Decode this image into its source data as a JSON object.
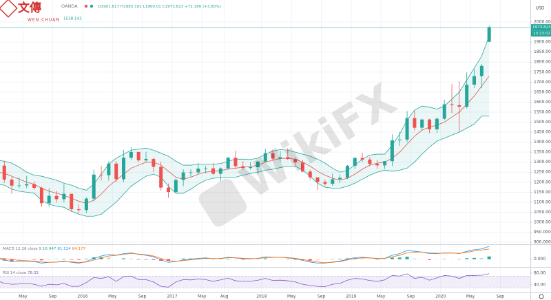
{
  "chart_data": {
    "type": "candlestick",
    "logo": {
      "text": "文傳",
      "sub": "WEN CHUAN"
    },
    "symbol": "OANDA",
    "ohlc_labels": [
      "O",
      "H",
      "L",
      "C"
    ],
    "change": "+72.186 (+3.80%)",
    "bb_text": "1538.143",
    "watermark": "WikiFX",
    "currency": "USD",
    "countdown": "13:23:02",
    "colors": {
      "up": "#26a69a",
      "down": "#ef5350"
    },
    "grid": true,
    "x": [
      "2015-01",
      "2015-02",
      "2015-03",
      "2015-04",
      "2015-05",
      "2015-06",
      "2015-07",
      "2015-08",
      "2015-09",
      "2015-10",
      "2015-11",
      "2015-12",
      "2016-01",
      "2016-02",
      "2016-03",
      "2016-04",
      "2016-05",
      "2016-06",
      "2016-07",
      "2016-08",
      "2016-09",
      "2016-10",
      "2016-11",
      "2016-12",
      "2017-01",
      "2017-02",
      "2017-03",
      "2017-04",
      "2017-05",
      "2017-06",
      "2017-07",
      "2017-08",
      "2017-09",
      "2017-10",
      "2017-11",
      "2017-12",
      "2018-01",
      "2018-02",
      "2018-03",
      "2018-04",
      "2018-05",
      "2018-06",
      "2018-07",
      "2018-08",
      "2018-09",
      "2018-10",
      "2018-11",
      "2018-12",
      "2019-01",
      "2019-02",
      "2019-03",
      "2019-04",
      "2019-05",
      "2019-06",
      "2019-07",
      "2019-08",
      "2019-09",
      "2019-10",
      "2019-11",
      "2019-12",
      "2020-01",
      "2020-02",
      "2020-03",
      "2020-04",
      "2020-05",
      "2020-06",
      "2020-07"
    ],
    "open": [
      1184,
      1283,
      1213,
      1183,
      1184,
      1190,
      1172,
      1095,
      1132,
      1115,
      1142,
      1065,
      1061,
      1118,
      1238,
      1235,
      1293,
      1215,
      1322,
      1351,
      1309,
      1316,
      1277,
      1173,
      1151,
      1211,
      1249,
      1249,
      1268,
      1269,
      1242,
      1269,
      1322,
      1280,
      1271,
      1275,
      1303,
      1345,
      1318,
      1325,
      1316,
      1299,
      1253,
      1224,
      1201,
      1192,
      1215,
      1222,
      1282,
      1321,
      1313,
      1292,
      1284,
      1305,
      1409,
      1413,
      1520,
      1472,
      1513,
      1464,
      1517,
      1589,
      1585,
      1577,
      1687,
      1730,
      1901.617
    ],
    "high": [
      1307,
      1307,
      1225,
      1224,
      1232,
      1205,
      1178,
      1170,
      1157,
      1192,
      1142,
      1088,
      1125,
      1262,
      1282,
      1304,
      1306,
      1362,
      1375,
      1352,
      1352,
      1322,
      1303,
      1193,
      1220,
      1264,
      1264,
      1296,
      1282,
      1296,
      1274,
      1326,
      1357,
      1306,
      1300,
      1307,
      1366,
      1362,
      1356,
      1370,
      1326,
      1310,
      1262,
      1216,
      1214,
      1243,
      1238,
      1286,
      1326,
      1347,
      1325,
      1311,
      1306,
      1439,
      1452,
      1555,
      1557,
      1517,
      1517,
      1524,
      1612,
      1690,
      1703,
      1748,
      1765,
      1790,
      1983.102
    ],
    "low": [
      1167,
      1197,
      1142,
      1170,
      1170,
      1162,
      1077,
      1077,
      1097,
      1098,
      1052,
      1046,
      1046,
      1105,
      1208,
      1208,
      1200,
      1200,
      1310,
      1300,
      1302,
      1251,
      1157,
      1122,
      1146,
      1180,
      1227,
      1240,
      1245,
      1236,
      1205,
      1266,
      1270,
      1260,
      1263,
      1237,
      1300,
      1307,
      1304,
      1310,
      1282,
      1250,
      1210,
      1160,
      1181,
      1182,
      1196,
      1215,
      1266,
      1302,
      1280,
      1266,
      1266,
      1280,
      1382,
      1400,
      1459,
      1458,
      1445,
      1446,
      1510,
      1546,
      1451,
      1568,
      1670,
      1670,
      1900.01
    ],
    "close": [
      1283,
      1213,
      1183,
      1184,
      1190,
      1172,
      1095,
      1132,
      1115,
      1142,
      1065,
      1061,
      1118,
      1238,
      1235,
      1293,
      1215,
      1322,
      1351,
      1309,
      1316,
      1277,
      1173,
      1151,
      1211,
      1249,
      1249,
      1268,
      1269,
      1242,
      1269,
      1322,
      1280,
      1271,
      1275,
      1303,
      1345,
      1318,
      1325,
      1316,
      1299,
      1253,
      1224,
      1201,
      1192,
      1215,
      1222,
      1282,
      1321,
      1313,
      1292,
      1284,
      1305,
      1409,
      1413,
      1520,
      1472,
      1513,
      1464,
      1517,
      1589,
      1585,
      1577,
      1687,
      1730,
      1781,
      1973.823
    ],
    "bollinger": {
      "band_color": "#26a69a",
      "basis_color": "#e0534f",
      "fill": "rgba(38,166,154,0.09)",
      "upper": [
        1310,
        1305,
        1295,
        1275,
        1250,
        1235,
        1230,
        1220,
        1210,
        1195,
        1185,
        1170,
        1160,
        1190,
        1240,
        1290,
        1320,
        1340,
        1360,
        1365,
        1370,
        1360,
        1345,
        1330,
        1305,
        1285,
        1285,
        1290,
        1290,
        1290,
        1293,
        1305,
        1315,
        1315,
        1313,
        1320,
        1340,
        1355,
        1363,
        1360,
        1350,
        1340,
        1330,
        1315,
        1295,
        1270,
        1250,
        1260,
        1285,
        1315,
        1335,
        1340,
        1340,
        1385,
        1440,
        1510,
        1560,
        1580,
        1575,
        1565,
        1580,
        1615,
        1650,
        1710,
        1770,
        1830,
        1930
      ],
      "basis": [
        1250,
        1245,
        1230,
        1215,
        1200,
        1190,
        1170,
        1155,
        1145,
        1135,
        1120,
        1105,
        1095,
        1110,
        1140,
        1180,
        1210,
        1240,
        1270,
        1285,
        1300,
        1300,
        1285,
        1255,
        1225,
        1215,
        1225,
        1240,
        1250,
        1255,
        1258,
        1265,
        1270,
        1275,
        1278,
        1285,
        1300,
        1310,
        1318,
        1320,
        1315,
        1300,
        1280,
        1255,
        1235,
        1220,
        1210,
        1220,
        1240,
        1265,
        1285,
        1295,
        1300,
        1320,
        1350,
        1390,
        1430,
        1460,
        1475,
        1485,
        1500,
        1525,
        1550,
        1590,
        1630,
        1680,
        1730
      ],
      "lower": [
        1190,
        1185,
        1165,
        1155,
        1150,
        1145,
        1110,
        1090,
        1080,
        1075,
        1055,
        1040,
        1030,
        1030,
        1040,
        1070,
        1100,
        1140,
        1180,
        1205,
        1230,
        1240,
        1225,
        1180,
        1145,
        1145,
        1165,
        1190,
        1210,
        1220,
        1223,
        1225,
        1225,
        1235,
        1243,
        1250,
        1260,
        1265,
        1273,
        1280,
        1280,
        1260,
        1230,
        1195,
        1175,
        1170,
        1170,
        1180,
        1195,
        1215,
        1235,
        1250,
        1260,
        1255,
        1260,
        1270,
        1300,
        1340,
        1375,
        1405,
        1420,
        1435,
        1450,
        1470,
        1490,
        1530,
        1530
      ]
    },
    "ylim": [
      890,
      2110
    ],
    "yticks": [
      {
        "value": 900,
        "label": "900.000"
      },
      {
        "value": 950,
        "label": "950.000"
      },
      {
        "value": 1000,
        "label": "1000.000"
      },
      {
        "value": 1050,
        "label": "1050.000"
      },
      {
        "value": 1100,
        "label": "1100.000"
      },
      {
        "value": 1150,
        "label": "1150.000"
      },
      {
        "value": 1200,
        "label": "1200.000"
      },
      {
        "value": 1250,
        "label": "1250.000"
      },
      {
        "value": 1300,
        "label": "1300.000"
      },
      {
        "value": 1350,
        "label": "1350.000"
      },
      {
        "value": 1400,
        "label": "1400.000"
      },
      {
        "value": 1450,
        "label": "1450.000"
      },
      {
        "value": 1500,
        "label": "1500.000"
      },
      {
        "value": 1550,
        "label": "1550.000"
      },
      {
        "value": 1600,
        "label": "1600.000"
      },
      {
        "value": 1650,
        "label": "1650.000"
      },
      {
        "value": 1700,
        "label": "1700.000"
      },
      {
        "value": 1750,
        "label": "1750.000"
      },
      {
        "value": 1800,
        "label": "1800.000"
      },
      {
        "value": 1850,
        "label": "1850.000"
      },
      {
        "value": 1900,
        "label": "1900.000"
      },
      {
        "value": 2000,
        "label": "2000.000"
      }
    ],
    "xticks": [
      {
        "value": "2015-05",
        "label": "May"
      },
      {
        "value": "2015-09",
        "label": "Sep"
      },
      {
        "value": "2016-01",
        "label": "2016"
      },
      {
        "value": "2016-05",
        "label": "May"
      },
      {
        "value": "2016-09",
        "label": "Sep"
      },
      {
        "value": "2017-01",
        "label": "2017"
      },
      {
        "value": "2017-05",
        "label": "May"
      },
      {
        "value": "2017-08",
        "label": "Aug"
      },
      {
        "value": "2018-01",
        "label": "2018"
      },
      {
        "value": "2018-05",
        "label": "May"
      },
      {
        "value": "2018-09",
        "label": "Sep"
      },
      {
        "value": "2019-01",
        "label": "2019"
      },
      {
        "value": "2019-05",
        "label": "May"
      },
      {
        "value": "2019-09",
        "label": "Sep"
      },
      {
        "value": "2020-01",
        "label": "2020"
      },
      {
        "value": "2020-05",
        "label": "May"
      },
      {
        "value": "2020-09",
        "label": "Sep"
      }
    ],
    "macd": {
      "label": "MACD 12 26 close 9",
      "macd_color": "#2196f3",
      "signal_color": "#ff6d00",
      "macd": [
        5,
        -5,
        -15,
        -15,
        -12,
        -15,
        -25,
        -20,
        -18,
        -12,
        -20,
        -25,
        -15,
        5,
        20,
        30,
        25,
        35,
        40,
        30,
        25,
        15,
        -5,
        -20,
        -15,
        -5,
        0,
        5,
        8,
        3,
        5,
        12,
        8,
        3,
        2,
        5,
        15,
        12,
        12,
        8,
        3,
        -8,
        -18,
        -25,
        -25,
        -18,
        -12,
        0,
        10,
        12,
        8,
        3,
        5,
        25,
        35,
        55,
        50,
        45,
        35,
        35,
        40,
        40,
        35,
        50,
        60,
        65,
        81.124
      ],
      "signal": [
        8,
        4,
        -2,
        -8,
        -10,
        -12,
        -18,
        -20,
        -19,
        -15,
        -17,
        -21,
        -18,
        -6,
        8,
        20,
        24,
        30,
        36,
        33,
        28,
        20,
        5,
        -10,
        -13,
        -9,
        -4,
        1,
        5,
        4,
        4,
        9,
        9,
        6,
        4,
        4,
        10,
        11,
        12,
        10,
        6,
        -2,
        -10,
        -18,
        -22,
        -20,
        -15,
        -5,
        4,
        8,
        8,
        5,
        5,
        15,
        25,
        40,
        45,
        45,
        40,
        37,
        38,
        39,
        37,
        44,
        52,
        58,
        64.177
      ],
      "hist": [
        -3,
        -9,
        -13,
        -7,
        -2,
        -3,
        -7,
        0,
        1,
        3,
        -3,
        -4,
        3,
        11,
        12,
        10,
        1,
        5,
        4,
        -3,
        -3,
        -5,
        -10,
        -10,
        -2,
        4,
        4,
        4,
        3,
        -1,
        1,
        3,
        -1,
        -3,
        -2,
        1,
        5,
        1,
        0,
        -2,
        -3,
        -6,
        -8,
        -7,
        -3,
        2,
        3,
        5,
        6,
        4,
        0,
        -2,
        0,
        10,
        10,
        15,
        5,
        0,
        -5,
        -2,
        2,
        1,
        -2,
        6,
        8,
        7,
        16.947
      ],
      "ylim": [
        -45,
        90
      ],
      "yticks": [
        {
          "value": 0,
          "label": "0.000"
        }
      ]
    },
    "rsi": {
      "label": "RSI 14 close",
      "color": "#7e57c2",
      "band_fill": "rgba(126,87,194,0.10)",
      "band": [
        30,
        70
      ],
      "values": [
        55,
        45,
        42,
        43,
        45,
        42,
        35,
        42,
        40,
        45,
        35,
        35,
        48,
        65,
        62,
        68,
        52,
        68,
        70,
        58,
        58,
        50,
        35,
        32,
        50,
        58,
        57,
        60,
        58,
        52,
        57,
        63,
        54,
        52,
        52,
        56,
        62,
        55,
        56,
        54,
        50,
        42,
        38,
        35,
        34,
        42,
        45,
        56,
        62,
        60,
        55,
        52,
        57,
        72,
        70,
        78,
        62,
        66,
        56,
        64,
        72,
        70,
        62,
        72,
        72,
        73,
        78.33
      ],
      "ylim": [
        14,
        99
      ],
      "yticks": [
        {
          "value": 80,
          "label": "80.00"
        },
        {
          "value": 40,
          "label": "40.00"
        }
      ]
    }
  }
}
